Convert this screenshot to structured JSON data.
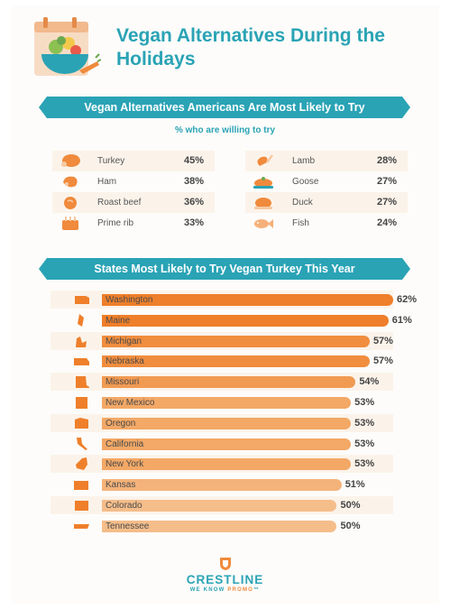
{
  "title": "Vegan Alternatives During the Holidays",
  "section1": {
    "heading": "Vegan Alternatives Americans Are Most Likely to Try",
    "subtitle": "% who are willing to try",
    "left": [
      {
        "name": "Turkey",
        "pct": "45%",
        "icon": "turkey-leg-icon"
      },
      {
        "name": "Ham",
        "pct": "38%",
        "icon": "ham-icon"
      },
      {
        "name": "Roast beef",
        "pct": "36%",
        "icon": "roast-beef-icon"
      },
      {
        "name": "Prime rib",
        "pct": "33%",
        "icon": "prime-rib-icon"
      }
    ],
    "right": [
      {
        "name": "Lamb",
        "pct": "28%",
        "icon": "lamb-chop-icon"
      },
      {
        "name": "Goose",
        "pct": "27%",
        "icon": "roast-goose-icon"
      },
      {
        "name": "Duck",
        "pct": "27%",
        "icon": "roast-duck-icon"
      },
      {
        "name": "Fish",
        "pct": "24%",
        "icon": "fish-icon"
      }
    ]
  },
  "section2": {
    "heading": "States Most Likely to Try Vegan Turkey This Year"
  },
  "chart_data": [
    {
      "type": "table",
      "categories": [
        "Turkey",
        "Ham",
        "Roast beef",
        "Prime rib",
        "Lamb",
        "Goose",
        "Duck",
        "Fish"
      ],
      "values": [
        45,
        38,
        36,
        33,
        28,
        27,
        27,
        24
      ],
      "title": "Vegan Alternatives Americans Are Most Likely to Try",
      "subtitle": "% who are willing to try"
    },
    {
      "type": "bar",
      "orientation": "horizontal",
      "title": "States Most Likely to Try Vegan Turkey This Year",
      "categories": [
        "Washington",
        "Maine",
        "Michigan",
        "Nebraska",
        "Missouri",
        "New Mexico",
        "Oregon",
        "California",
        "New York",
        "Kansas",
        "Colorado",
        "Tennessee"
      ],
      "values": [
        62,
        61,
        57,
        57,
        54,
        53,
        53,
        53,
        53,
        51,
        50,
        50
      ],
      "labels": [
        "62%",
        "61%",
        "57%",
        "57%",
        "54%",
        "53%",
        "53%",
        "53%",
        "53%",
        "51%",
        "50%",
        "50%"
      ],
      "xlim": [
        0,
        62
      ],
      "colors": [
        "#ef7f2a",
        "#ef7f2a",
        "#f08d3e",
        "#f08d3e",
        "#f19a52",
        "#f3a866",
        "#f3a866",
        "#f3a866",
        "#f3a866",
        "#f4b37a",
        "#f5bd8a",
        "#f5bd8a"
      ]
    }
  ],
  "logo": {
    "name": "CRESTLINE",
    "tag_prefix": "WE KNOW ",
    "tag_highlight": "PROMO",
    "tag_suffix": "™"
  },
  "colors": {
    "teal": "#2aa3b5",
    "orange": "#ef7f2a",
    "row_tint": "#fbf3ea"
  }
}
